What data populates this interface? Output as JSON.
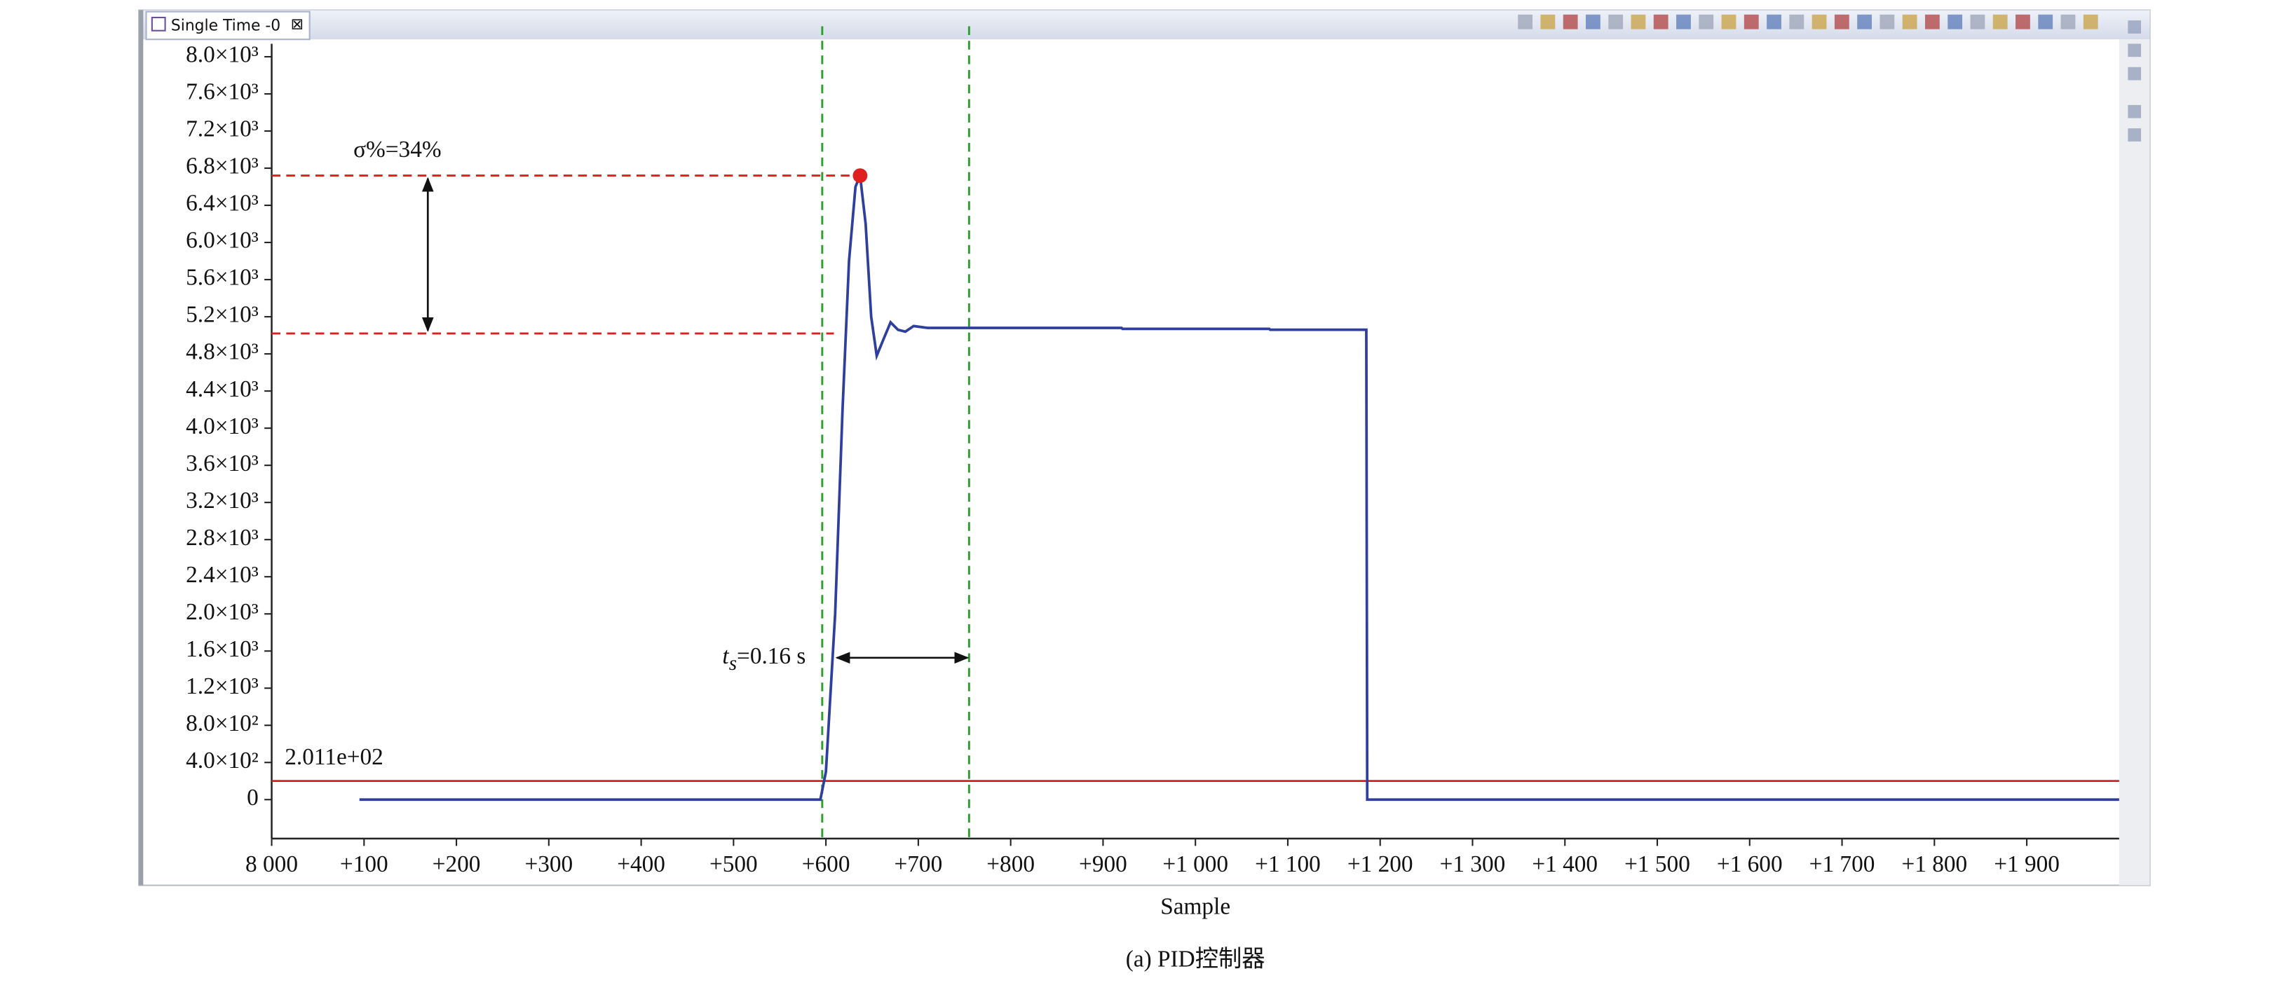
{
  "window": {
    "tab_title": "Single Time -0"
  },
  "chart_data": {
    "type": "line",
    "xlabel": "Sample",
    "caption": "(a) PID控制器",
    "xlim": [
      8000,
      10000
    ],
    "ylim": [
      -420,
      8140
    ],
    "xticks": [
      {
        "value": 8000,
        "label": "8 000"
      },
      {
        "value": 8100,
        "label": "+100"
      },
      {
        "value": 8200,
        "label": "+200"
      },
      {
        "value": 8300,
        "label": "+300"
      },
      {
        "value": 8400,
        "label": "+400"
      },
      {
        "value": 8500,
        "label": "+500"
      },
      {
        "value": 8600,
        "label": "+600"
      },
      {
        "value": 8700,
        "label": "+700"
      },
      {
        "value": 8800,
        "label": "+800"
      },
      {
        "value": 8900,
        "label": "+900"
      },
      {
        "value": 9000,
        "label": "+1 000"
      },
      {
        "value": 9100,
        "label": "+1 100"
      },
      {
        "value": 9200,
        "label": "+1 200"
      },
      {
        "value": 9300,
        "label": "+1 300"
      },
      {
        "value": 9400,
        "label": "+1 400"
      },
      {
        "value": 9500,
        "label": "+1 500"
      },
      {
        "value": 9600,
        "label": "+1 600"
      },
      {
        "value": 9700,
        "label": "+1 700"
      },
      {
        "value": 9800,
        "label": "+1 800"
      },
      {
        "value": 9900,
        "label": "+1 900"
      }
    ],
    "yticks": [
      0,
      {
        "value": 400,
        "label": "4.0×10²"
      },
      {
        "value": 800,
        "label": "8.0×10²"
      },
      {
        "value": 1200,
        "label": "1.2×10³"
      },
      {
        "value": 1600,
        "label": "1.6×10³"
      },
      {
        "value": 2000,
        "label": "2.0×10³"
      },
      {
        "value": 2400,
        "label": "2.4×10³"
      },
      {
        "value": 2800,
        "label": "2.8×10³"
      },
      {
        "value": 3200,
        "label": "3.2×10³"
      },
      {
        "value": 3600,
        "label": "3.6×10³"
      },
      {
        "value": 4000,
        "label": "4.0×10³"
      },
      {
        "value": 4400,
        "label": "4.4×10³"
      },
      {
        "value": 4800,
        "label": "4.8×10³"
      },
      {
        "value": 5200,
        "label": "5.2×10³"
      },
      {
        "value": 5600,
        "label": "5.6×10³"
      },
      {
        "value": 6000,
        "label": "6.0×10³"
      },
      {
        "value": 6400,
        "label": "6.4×10³"
      },
      {
        "value": 6800,
        "label": "6.8×10³"
      },
      {
        "value": 7200,
        "label": "7.2×10³"
      },
      {
        "value": 7600,
        "label": "7.6×10³"
      },
      {
        "value": 8000,
        "label": "8.0×10³"
      }
    ],
    "grid": false,
    "x": [
      8095,
      8594,
      8600,
      8610,
      8618,
      8625,
      8632,
      8637,
      8643,
      8649,
      8655,
      8662,
      8670,
      8678,
      8686,
      8695,
      8710,
      8740,
      8920,
      8921,
      9080,
      9081,
      9185,
      9186,
      10000
    ],
    "series": [
      {
        "color": "#2e3f9e",
        "values": [
          0,
          0,
          300,
          2000,
          4200,
          5800,
          6600,
          6720,
          6200,
          5200,
          4780,
          4950,
          5140,
          5060,
          5040,
          5100,
          5080,
          5080,
          5080,
          5070,
          5070,
          5060,
          5060,
          0,
          0
        ]
      }
    ],
    "peak": {
      "x": 8637,
      "value": 6720,
      "color": "#e02020"
    },
    "threshold": {
      "value": 201.1,
      "label": "2.011e+02",
      "color": "#d42020"
    },
    "reference_hlines": {
      "values": [
        6720,
        5020
      ],
      "color": "#e02020"
    },
    "reference_vlines": {
      "values": [
        8596,
        8755
      ],
      "color": "#2ca02c"
    },
    "annotations": {
      "overshoot": "σ%=34%",
      "settling": {
        "symbol": "t",
        "subscript": "s",
        "text": "=0.16 s"
      }
    }
  }
}
